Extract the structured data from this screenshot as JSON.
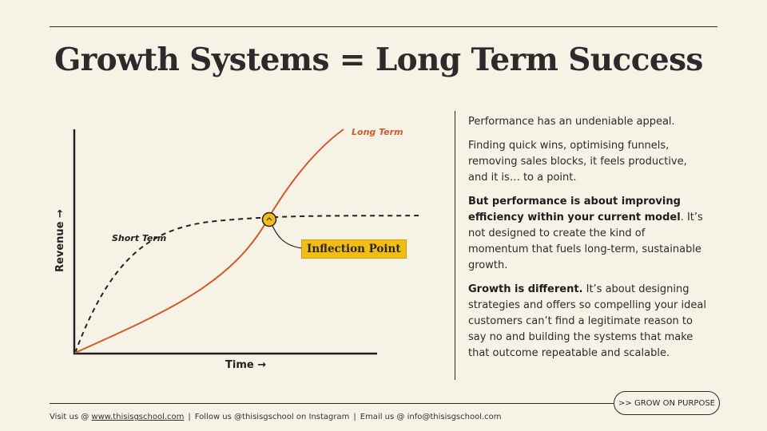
{
  "title": "Growth Systems = Long Term Success",
  "chart_data": {
    "type": "line",
    "xlabel": "Time →",
    "ylabel": "Revenue →",
    "series": [
      {
        "name": "Long Term",
        "color": "#d15a2a",
        "style": "solid"
      },
      {
        "name": "Short Term",
        "color": "#222222",
        "style": "dashed"
      }
    ],
    "annotation": "Inflection Point",
    "annotation_color": "#f3bd18"
  },
  "body": {
    "p1": "Performance has an undeniable appeal.",
    "p2": "Finding quick wins, optimising funnels, removing sales blocks, it feels productive, and it is… to a point.",
    "p3_bold": "But performance is about improving efficiency within your current model",
    "p3_rest": ". It’s not designed to create the kind of momentum that fuels long-term, sustainable growth.",
    "p4_bold": "Growth is different.",
    "p4_rest": " It’s about designing strategies and offers so compelling your ideal customers can’t find a legitimate reason to say no and building the systems that make that outcome repeatable and scalable."
  },
  "cta": ">> GROW ON PURPOSE",
  "footer": {
    "visit_prefix": "Visit us @ ",
    "website": "www.thisisgschool.com",
    "sep": "|",
    "follow": "Follow us @thisisgschool on Instagram",
    "email": "Email us @ info@thisisgschool.com"
  }
}
